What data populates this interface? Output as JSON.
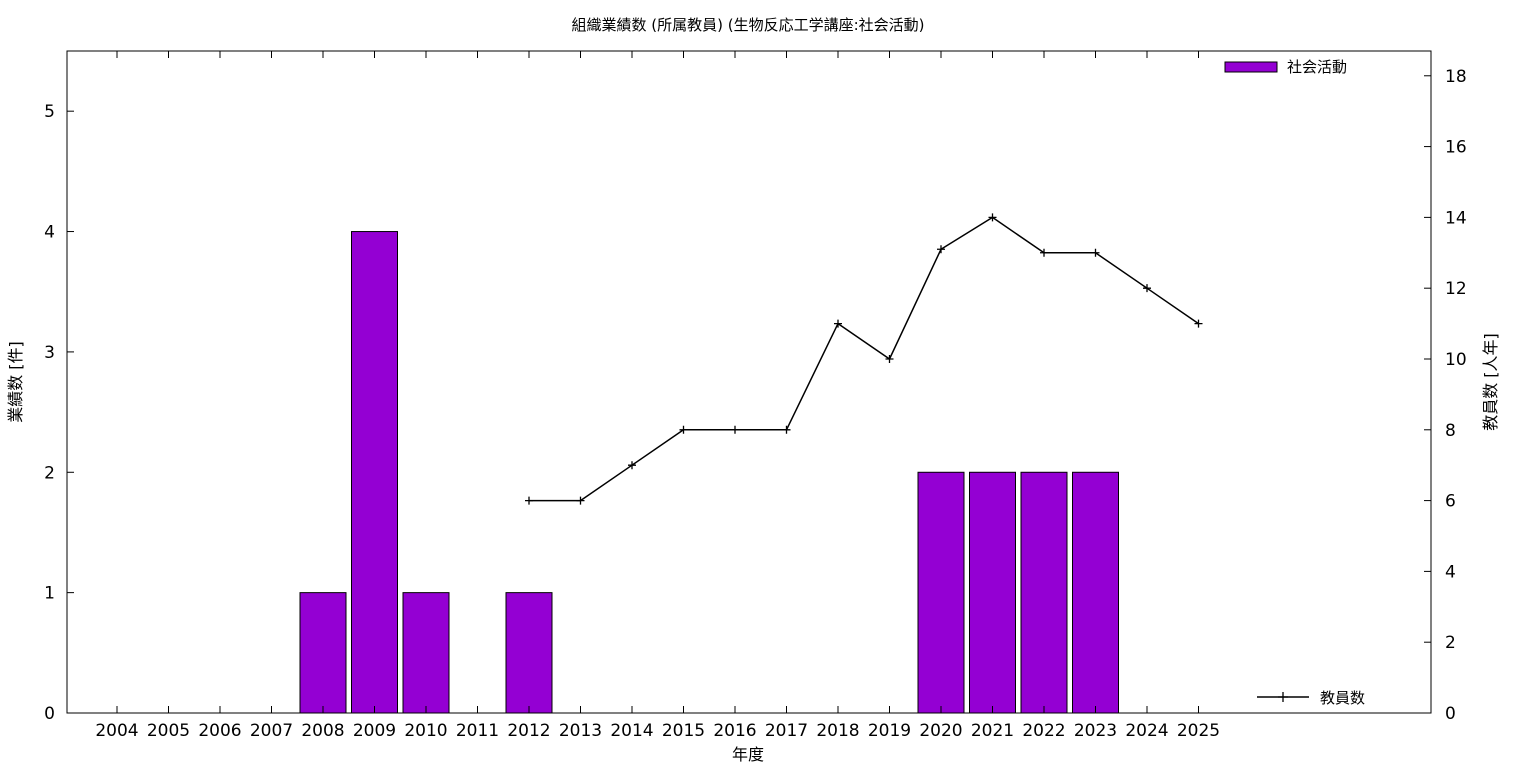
{
  "chart_data": {
    "type": "bar",
    "title": "組織業績数 (所属教員) (生物反応工学講座:社会活動)",
    "xlabel": "年度",
    "ylabel": "業績数 [件]",
    "y2label": "教員数 [人年]",
    "categories": [
      "2004",
      "2005",
      "2006",
      "2007",
      "2008",
      "2009",
      "2010",
      "2011",
      "2012",
      "2013",
      "2014",
      "2015",
      "2016",
      "2017",
      "2018",
      "2019",
      "2020",
      "2021",
      "2022",
      "2023",
      "2024",
      "2025"
    ],
    "ylim": [
      0,
      5.5
    ],
    "y2lim": [
      0,
      18.7
    ],
    "yticks": [
      0,
      1,
      2,
      3,
      4,
      5
    ],
    "y2ticks": [
      0,
      2,
      4,
      6,
      8,
      10,
      12,
      14,
      16,
      18
    ],
    "grid": false,
    "series": [
      {
        "name": "社会活動",
        "type": "bar",
        "axis": "left",
        "color": "#9400d3",
        "values": [
          0,
          0,
          0,
          0,
          1,
          4,
          1,
          0,
          1,
          0,
          0,
          0,
          0,
          0,
          0,
          0,
          2,
          2,
          2,
          2,
          0,
          0
        ]
      },
      {
        "name": "教員数",
        "type": "line",
        "axis": "right",
        "color": "#000000",
        "marker": "plus",
        "values": [
          null,
          null,
          null,
          null,
          null,
          null,
          null,
          null,
          6,
          6,
          7,
          8,
          8,
          8,
          11,
          10,
          13.1,
          14,
          13,
          13,
          12,
          11
        ]
      }
    ],
    "legend": [
      {
        "label": "社会活動",
        "placement": "top-right",
        "kind": "bar"
      },
      {
        "label": "教員数",
        "placement": "bottom-right",
        "kind": "line"
      }
    ]
  }
}
